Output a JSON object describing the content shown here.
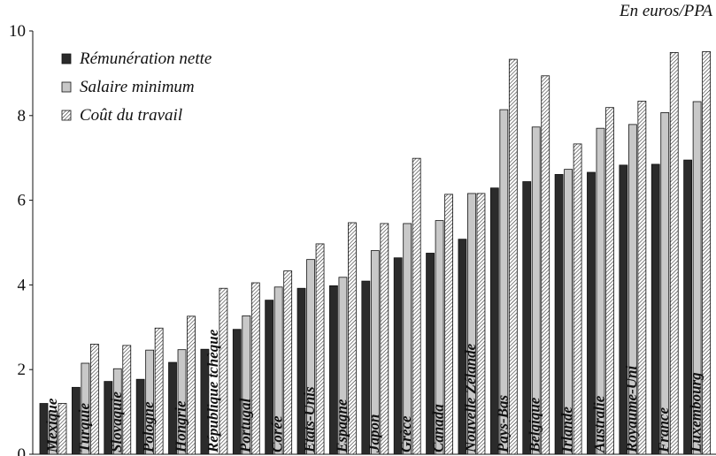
{
  "chart_data": {
    "type": "bar",
    "unit_label": "En euros/PPA",
    "categories": [
      "Mexique",
      "Turquie",
      "Slovaquie",
      "Pologne",
      "Hongrie",
      "République tchèque",
      "Portugal",
      "Corée",
      "Etats-Unis",
      "Espagne",
      "Japon",
      "Grèce",
      "Canada",
      "Nouvelle Zélande",
      "Pays-Bas",
      "Belgique",
      "Irlande",
      "Australie",
      "Royaume-Uni",
      "France",
      "Luxembourg"
    ],
    "series": [
      {
        "name": "Rémunération nette",
        "pattern": "solid",
        "color": "#2b2b2b",
        "values": [
          1.2,
          1.58,
          1.72,
          1.77,
          2.17,
          2.48,
          2.95,
          3.64,
          3.92,
          3.98,
          4.09,
          4.64,
          4.75,
          5.08,
          6.29,
          6.44,
          6.61,
          6.66,
          6.83,
          6.85,
          6.95
        ]
      },
      {
        "name": "Salaire minimum",
        "pattern": "light",
        "color": "#c8c8c8",
        "values": [
          1.02,
          2.15,
          2.02,
          2.46,
          2.47,
          null,
          3.27,
          3.95,
          4.6,
          4.18,
          4.81,
          5.45,
          5.52,
          6.16,
          8.14,
          7.73,
          6.73,
          7.7,
          7.79,
          8.07,
          8.33
        ]
      },
      {
        "name": "Coût du travail",
        "pattern": "hatched",
        "color": "#ffffff",
        "values": [
          1.2,
          2.6,
          2.57,
          2.98,
          3.26,
          3.92,
          4.05,
          4.33,
          4.97,
          5.47,
          5.45,
          6.99,
          6.14,
          6.16,
          9.33,
          8.94,
          7.33,
          8.19,
          8.34,
          9.49,
          9.51
        ]
      }
    ],
    "ylim": [
      0,
      10
    ],
    "yticks": [
      0,
      2,
      4,
      6,
      8,
      10
    ],
    "legend_position": "top-left",
    "grid": false
  }
}
